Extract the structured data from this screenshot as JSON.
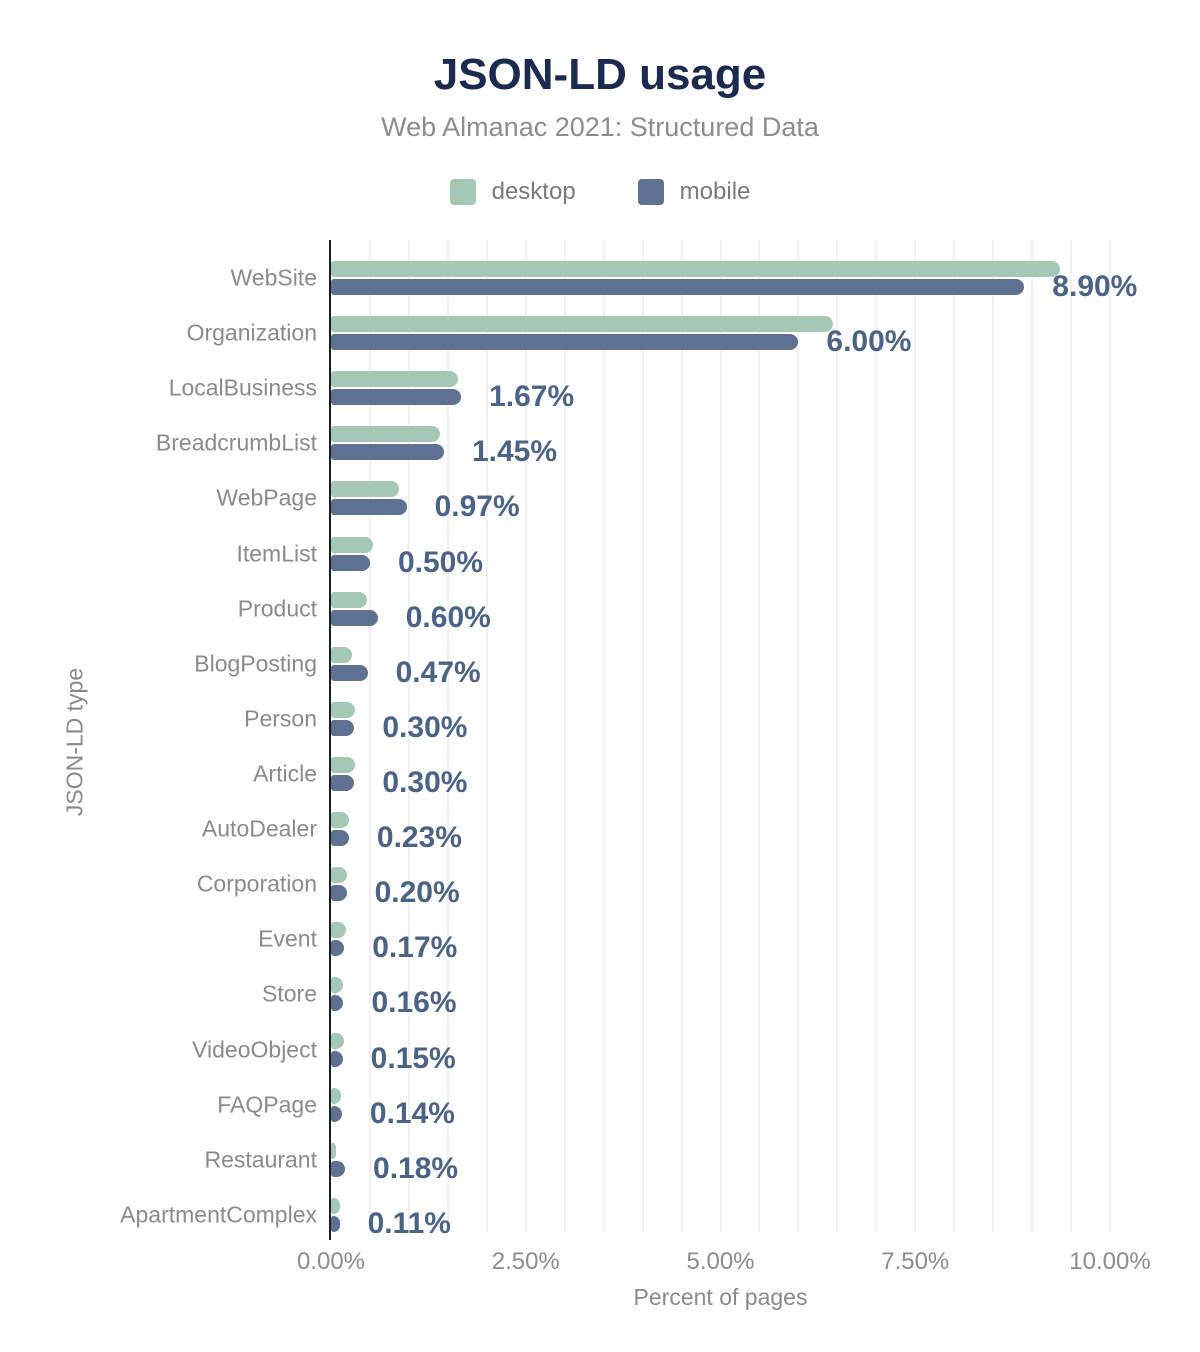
{
  "header": {
    "title": "JSON-LD usage",
    "subtitle": "Web Almanac 2021: Structured Data"
  },
  "chart_data": {
    "type": "bar",
    "orientation": "horizontal",
    "title": "JSON-LD usage",
    "subtitle": "Web Almanac 2021: Structured Data",
    "xlabel": "Percent of pages",
    "ylabel": "JSON-LD type",
    "legend_position": "top",
    "grid": true,
    "grid_step_percent": 0.5,
    "xlim": [
      0,
      10.5
    ],
    "x_ticks": [
      {
        "label": "0.00%",
        "value": 0
      },
      {
        "label": "2.50%",
        "value": 2.5
      },
      {
        "label": "5.00%",
        "value": 5
      },
      {
        "label": "7.50%",
        "value": 7.5
      },
      {
        "label": "10.00%",
        "value": 10
      }
    ],
    "categories": [
      "WebSite",
      "Organization",
      "LocalBusiness",
      "BreadcrumbList",
      "WebPage",
      "ItemList",
      "Product",
      "BlogPosting",
      "Person",
      "Article",
      "AutoDealer",
      "Corporation",
      "Event",
      "Store",
      "VideoObject",
      "FAQPage",
      "Restaurant",
      "ApartmentComplex"
    ],
    "series": [
      {
        "name": "desktop",
        "color": "#a5c8b6",
        "values": [
          9.36,
          6.44,
          1.63,
          1.4,
          0.87,
          0.54,
          0.46,
          0.27,
          0.31,
          0.31,
          0.23,
          0.21,
          0.19,
          0.16,
          0.17,
          0.13,
          0.07,
          0.12
        ]
      },
      {
        "name": "mobile",
        "color": "#5e7190",
        "values": [
          8.9,
          6.0,
          1.67,
          1.45,
          0.97,
          0.5,
          0.6,
          0.47,
          0.3,
          0.3,
          0.23,
          0.2,
          0.17,
          0.16,
          0.15,
          0.14,
          0.18,
          0.11
        ]
      }
    ],
    "value_labels": [
      "8.90%",
      "6.00%",
      "1.67%",
      "1.45%",
      "0.97%",
      "0.50%",
      "0.60%",
      "0.47%",
      "0.30%",
      "0.30%",
      "0.23%",
      "0.20%",
      "0.17%",
      "0.16%",
      "0.15%",
      "0.14%",
      "0.18%",
      "0.11%"
    ],
    "value_label_series": "mobile",
    "colors": {
      "title": "#1b2a4e",
      "subtitle": "#8d8d8d",
      "value_label": "#4c6385",
      "axis_line": "#1d1d1d",
      "gridline": "#f1f1f4",
      "tick_label": "#8c8c8c"
    }
  }
}
